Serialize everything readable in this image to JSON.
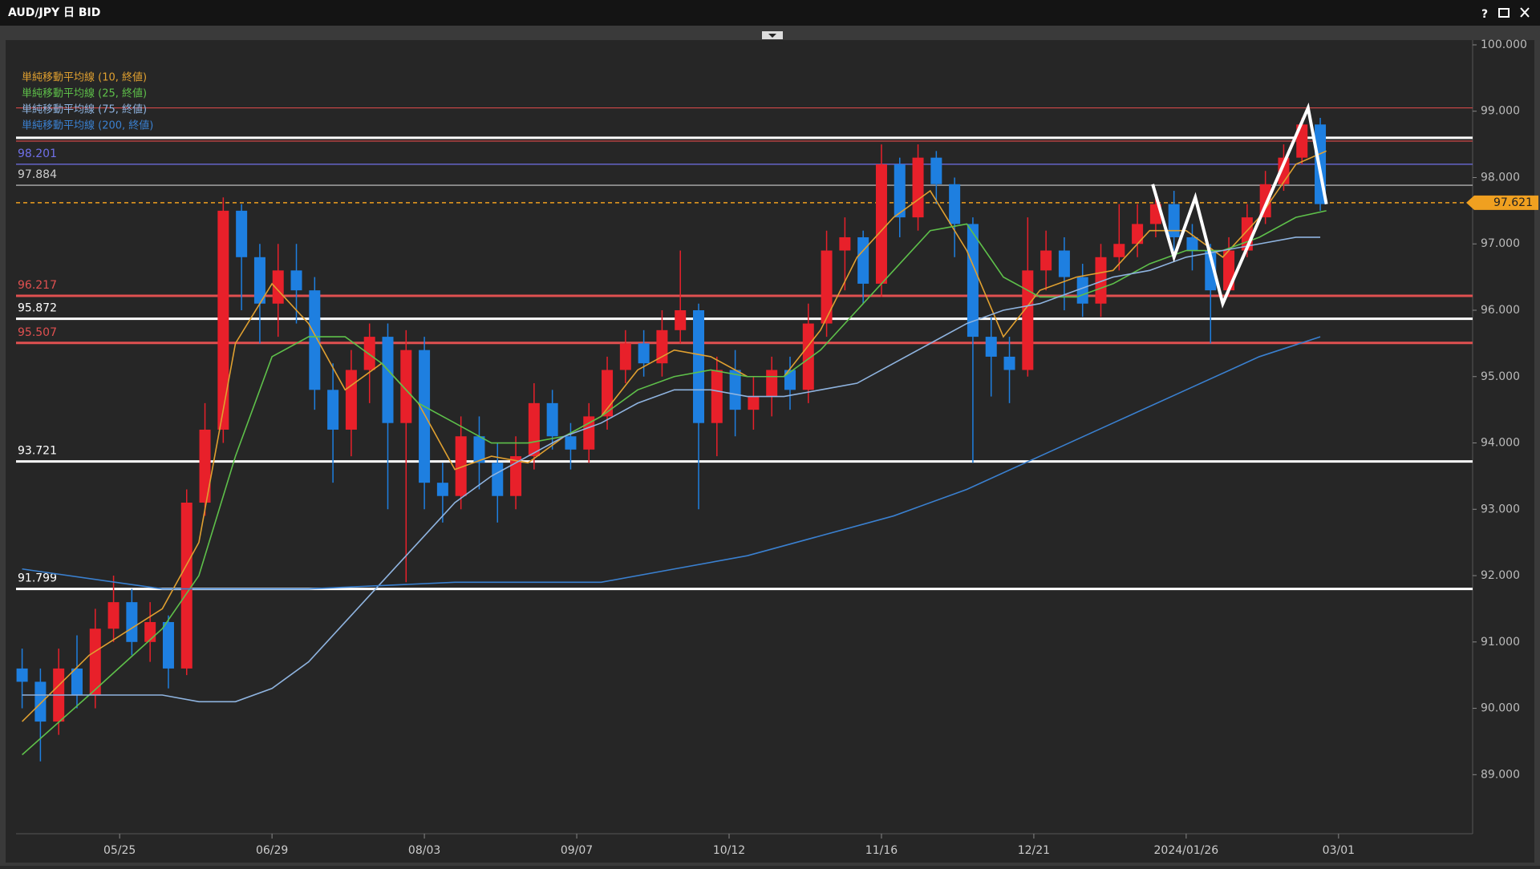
{
  "window": {
    "help": "?"
  },
  "chart_data": {
    "type": "candlestick",
    "title": "AUD/JPY 日 BID",
    "xlim": [
      0,
      239
    ],
    "ylim": [
      88.17,
      100.06
    ],
    "xticks": [
      {
        "value": 17,
        "label": "05/25"
      },
      {
        "value": 42,
        "label": "06/29"
      },
      {
        "value": 67,
        "label": "08/03"
      },
      {
        "value": 92,
        "label": "09/07"
      },
      {
        "value": 117,
        "label": "10/12"
      },
      {
        "value": 142,
        "label": "11/16"
      },
      {
        "value": 167,
        "label": "12/21"
      },
      {
        "value": 192,
        "label": "2024/01/26"
      },
      {
        "value": 217,
        "label": "03/01"
      }
    ],
    "yticks": [
      {
        "value": 89,
        "label": "89.000"
      },
      {
        "value": 90,
        "label": "90.000"
      },
      {
        "value": 91,
        "label": "91.000"
      },
      {
        "value": 92,
        "label": "92.000"
      },
      {
        "value": 93,
        "label": "93.000"
      },
      {
        "value": 94,
        "label": "94.000"
      },
      {
        "value": 95,
        "label": "95.000"
      },
      {
        "value": 96,
        "label": "96.000"
      },
      {
        "value": 97,
        "label": "97.000"
      },
      {
        "value": 98,
        "label": "98.000"
      },
      {
        "value": 99,
        "label": "99.000"
      },
      {
        "value": 100,
        "label": "100.000"
      }
    ],
    "grid": false,
    "up_color": "#e8202a",
    "down_color": "#1e7fe0",
    "x": [
      1,
      4,
      7,
      10,
      13,
      16,
      19,
      22,
      25,
      28,
      31,
      34,
      37,
      40,
      43,
      46,
      49,
      52,
      55,
      58,
      61,
      64,
      67,
      70,
      73,
      76,
      79,
      82,
      85,
      88,
      91,
      94,
      97,
      100,
      103,
      106,
      109,
      112,
      115,
      118,
      121,
      124,
      127,
      130,
      133,
      136,
      139,
      142,
      145,
      148,
      151,
      154,
      157,
      160,
      163,
      166,
      169,
      172,
      175,
      178,
      181,
      184,
      187,
      190,
      193,
      196,
      199,
      202,
      205,
      208,
      211,
      214
    ],
    "open": [
      90.6,
      90.4,
      89.8,
      90.6,
      90.2,
      91.2,
      91.6,
      91.0,
      91.3,
      90.6,
      93.1,
      94.2,
      97.5,
      96.8,
      96.1,
      96.6,
      96.3,
      94.8,
      94.2,
      95.1,
      95.6,
      94.3,
      95.4,
      93.4,
      93.2,
      94.1,
      93.7,
      93.2,
      93.8,
      94.6,
      94.1,
      93.9,
      94.4,
      95.1,
      95.5,
      95.2,
      95.7,
      96.0,
      94.3,
      95.1,
      94.5,
      94.7,
      95.1,
      94.8,
      95.8,
      96.9,
      97.1,
      96.4,
      98.2,
      97.4,
      98.3,
      97.9,
      97.3,
      95.6,
      95.3,
      95.1,
      96.6,
      96.9,
      96.5,
      96.1,
      96.8,
      97.0,
      97.3,
      97.6,
      97.1,
      96.9,
      96.3,
      96.9,
      97.4,
      97.9,
      98.3,
      98.8
    ],
    "high": [
      90.9,
      90.6,
      90.9,
      91.1,
      91.5,
      92.0,
      91.8,
      91.6,
      91.4,
      93.3,
      94.6,
      97.7,
      97.6,
      97.0,
      97.0,
      97.0,
      96.5,
      95.2,
      95.4,
      95.8,
      95.8,
      95.7,
      95.6,
      93.7,
      94.4,
      94.4,
      94.0,
      94.1,
      94.9,
      94.8,
      94.3,
      94.6,
      95.3,
      95.7,
      95.7,
      96.0,
      96.9,
      96.1,
      95.3,
      95.4,
      95.0,
      95.3,
      95.3,
      96.1,
      97.2,
      97.4,
      97.2,
      98.5,
      98.3,
      98.5,
      98.4,
      98.0,
      97.4,
      95.9,
      95.6,
      97.4,
      97.2,
      97.1,
      96.7,
      97.0,
      97.6,
      97.6,
      97.8,
      97.8,
      97.3,
      97.0,
      97.1,
      97.6,
      98.1,
      98.5,
      98.9,
      98.9
    ],
    "low": [
      90.0,
      89.2,
      89.6,
      90.0,
      90.0,
      91.0,
      90.8,
      90.7,
      90.3,
      90.5,
      92.9,
      94.0,
      96.0,
      95.5,
      95.6,
      95.8,
      94.5,
      93.4,
      93.8,
      94.6,
      93.0,
      91.9,
      93.0,
      92.8,
      93.0,
      93.3,
      92.8,
      93.0,
      93.6,
      93.9,
      93.6,
      93.7,
      94.2,
      94.9,
      95.0,
      95.0,
      95.5,
      93.0,
      93.8,
      94.1,
      94.2,
      94.4,
      94.5,
      94.6,
      95.6,
      96.3,
      96.1,
      96.2,
      97.1,
      97.2,
      97.6,
      96.8,
      93.7,
      94.7,
      94.6,
      95.0,
      96.3,
      96.0,
      95.9,
      95.9,
      96.6,
      96.8,
      97.1,
      96.9,
      96.6,
      95.5,
      96.2,
      96.8,
      97.3,
      97.8,
      98.2,
      97.5
    ],
    "close": [
      90.4,
      89.8,
      90.6,
      90.2,
      91.2,
      91.6,
      91.0,
      91.3,
      90.6,
      93.1,
      94.2,
      97.5,
      96.8,
      96.1,
      96.6,
      96.3,
      94.8,
      94.2,
      95.1,
      95.6,
      94.3,
      95.4,
      93.4,
      93.2,
      94.1,
      93.7,
      93.2,
      93.8,
      94.6,
      94.1,
      93.9,
      94.4,
      95.1,
      95.5,
      95.2,
      95.7,
      96.0,
      94.3,
      95.1,
      94.5,
      94.7,
      95.1,
      94.8,
      95.8,
      96.9,
      97.1,
      96.4,
      98.2,
      97.4,
      98.3,
      97.9,
      97.3,
      95.6,
      95.3,
      95.1,
      96.6,
      96.9,
      96.5,
      96.1,
      96.8,
      97.0,
      97.3,
      97.6,
      97.1,
      96.9,
      96.3,
      96.9,
      97.4,
      97.9,
      98.3,
      98.8,
      97.6
    ],
    "overlays": [
      {
        "name": "単純移動平均線 (10, 終値)",
        "color": "#e0a030",
        "x": [
          1,
          12,
          24,
          30,
          36,
          42,
          48,
          54,
          60,
          66,
          72,
          78,
          84,
          90,
          96,
          102,
          108,
          114,
          120,
          126,
          132,
          138,
          144,
          150,
          156,
          162,
          168,
          174,
          180,
          186,
          192,
          198,
          204,
          210,
          215
        ],
        "values": [
          89.8,
          90.8,
          91.5,
          92.5,
          95.5,
          96.4,
          95.8,
          94.8,
          95.2,
          94.6,
          93.6,
          93.8,
          93.7,
          94.1,
          94.4,
          95.1,
          95.4,
          95.3,
          95.0,
          95.0,
          95.7,
          96.8,
          97.4,
          97.8,
          96.9,
          95.6,
          96.3,
          96.5,
          96.6,
          97.2,
          97.2,
          96.8,
          97.4,
          98.2,
          98.4
        ]
      },
      {
        "name": "単純移動平均線 (25, 終値)",
        "color": "#5ec04a",
        "x": [
          1,
          12,
          24,
          30,
          36,
          42,
          48,
          54,
          60,
          66,
          72,
          78,
          84,
          90,
          96,
          102,
          108,
          114,
          120,
          126,
          132,
          138,
          144,
          150,
          156,
          162,
          168,
          174,
          180,
          186,
          192,
          198,
          204,
          210,
          215
        ],
        "values": [
          89.3,
          90.2,
          91.2,
          92.0,
          93.8,
          95.3,
          95.6,
          95.6,
          95.2,
          94.6,
          94.3,
          94.0,
          94.0,
          94.1,
          94.4,
          94.8,
          95.0,
          95.1,
          95.0,
          95.0,
          95.4,
          96.0,
          96.6,
          97.2,
          97.3,
          96.5,
          96.2,
          96.2,
          96.4,
          96.7,
          96.9,
          96.9,
          97.1,
          97.4,
          97.5
        ]
      },
      {
        "name": "単純移動平均線 (75, 終値)",
        "color": "#8fb4e0",
        "x": [
          1,
          12,
          24,
          30,
          36,
          42,
          48,
          54,
          60,
          66,
          72,
          78,
          84,
          90,
          96,
          102,
          108,
          114,
          120,
          126,
          132,
          138,
          144,
          150,
          156,
          162,
          168,
          174,
          180,
          186,
          192,
          198,
          204,
          210,
          214
        ],
        "values": [
          90.2,
          90.2,
          90.2,
          90.1,
          90.1,
          90.3,
          90.7,
          91.3,
          91.9,
          92.5,
          93.1,
          93.5,
          93.8,
          94.1,
          94.3,
          94.6,
          94.8,
          94.8,
          94.7,
          94.7,
          94.8,
          94.9,
          95.2,
          95.5,
          95.8,
          96.0,
          96.1,
          96.3,
          96.5,
          96.6,
          96.8,
          96.9,
          97.0,
          97.1,
          97.1
        ]
      },
      {
        "name": "単純移動平均線 (200, 終値)",
        "color": "#3a80d0",
        "x": [
          1,
          24,
          48,
          72,
          96,
          108,
          120,
          132,
          144,
          156,
          168,
          180,
          192,
          204,
          214
        ],
        "values": [
          92.1,
          91.8,
          91.8,
          91.9,
          91.9,
          92.1,
          92.3,
          92.6,
          92.9,
          93.3,
          93.8,
          94.3,
          94.8,
          95.3,
          95.6
        ]
      }
    ],
    "levels": [
      {
        "value": 99.05,
        "color": "#d04848"
      },
      {
        "value": 98.6,
        "color": "#ffffff",
        "style": "thick"
      },
      {
        "value": 98.55,
        "color": "#d04848"
      },
      {
        "value": 98.201,
        "color": "#7070e8",
        "labeled": true
      },
      {
        "value": 97.884,
        "color": "#cccccc",
        "labeled": true
      },
      {
        "value": 96.217,
        "color": "#e05050",
        "style": "thick",
        "labeled": true
      },
      {
        "value": 95.872,
        "color": "#ffffff",
        "style": "thick",
        "labeled": true
      },
      {
        "value": 95.507,
        "color": "#e05050",
        "style": "thick",
        "labeled": true
      },
      {
        "value": 93.721,
        "color": "#ffffff",
        "style": "thick",
        "labeled": true
      },
      {
        "value": 91.799,
        "color": "#ffffff",
        "style": "thick",
        "labeled": true
      }
    ],
    "current_price": 97.621,
    "current_color": "#f0a020",
    "drawings": [
      {
        "color": "#ffffff",
        "x": [
          186.5,
          190,
          193.5,
          198,
          212,
          215
        ],
        "y": [
          97.9,
          96.8,
          97.7,
          96.1,
          99.05,
          97.6
        ]
      }
    ]
  }
}
